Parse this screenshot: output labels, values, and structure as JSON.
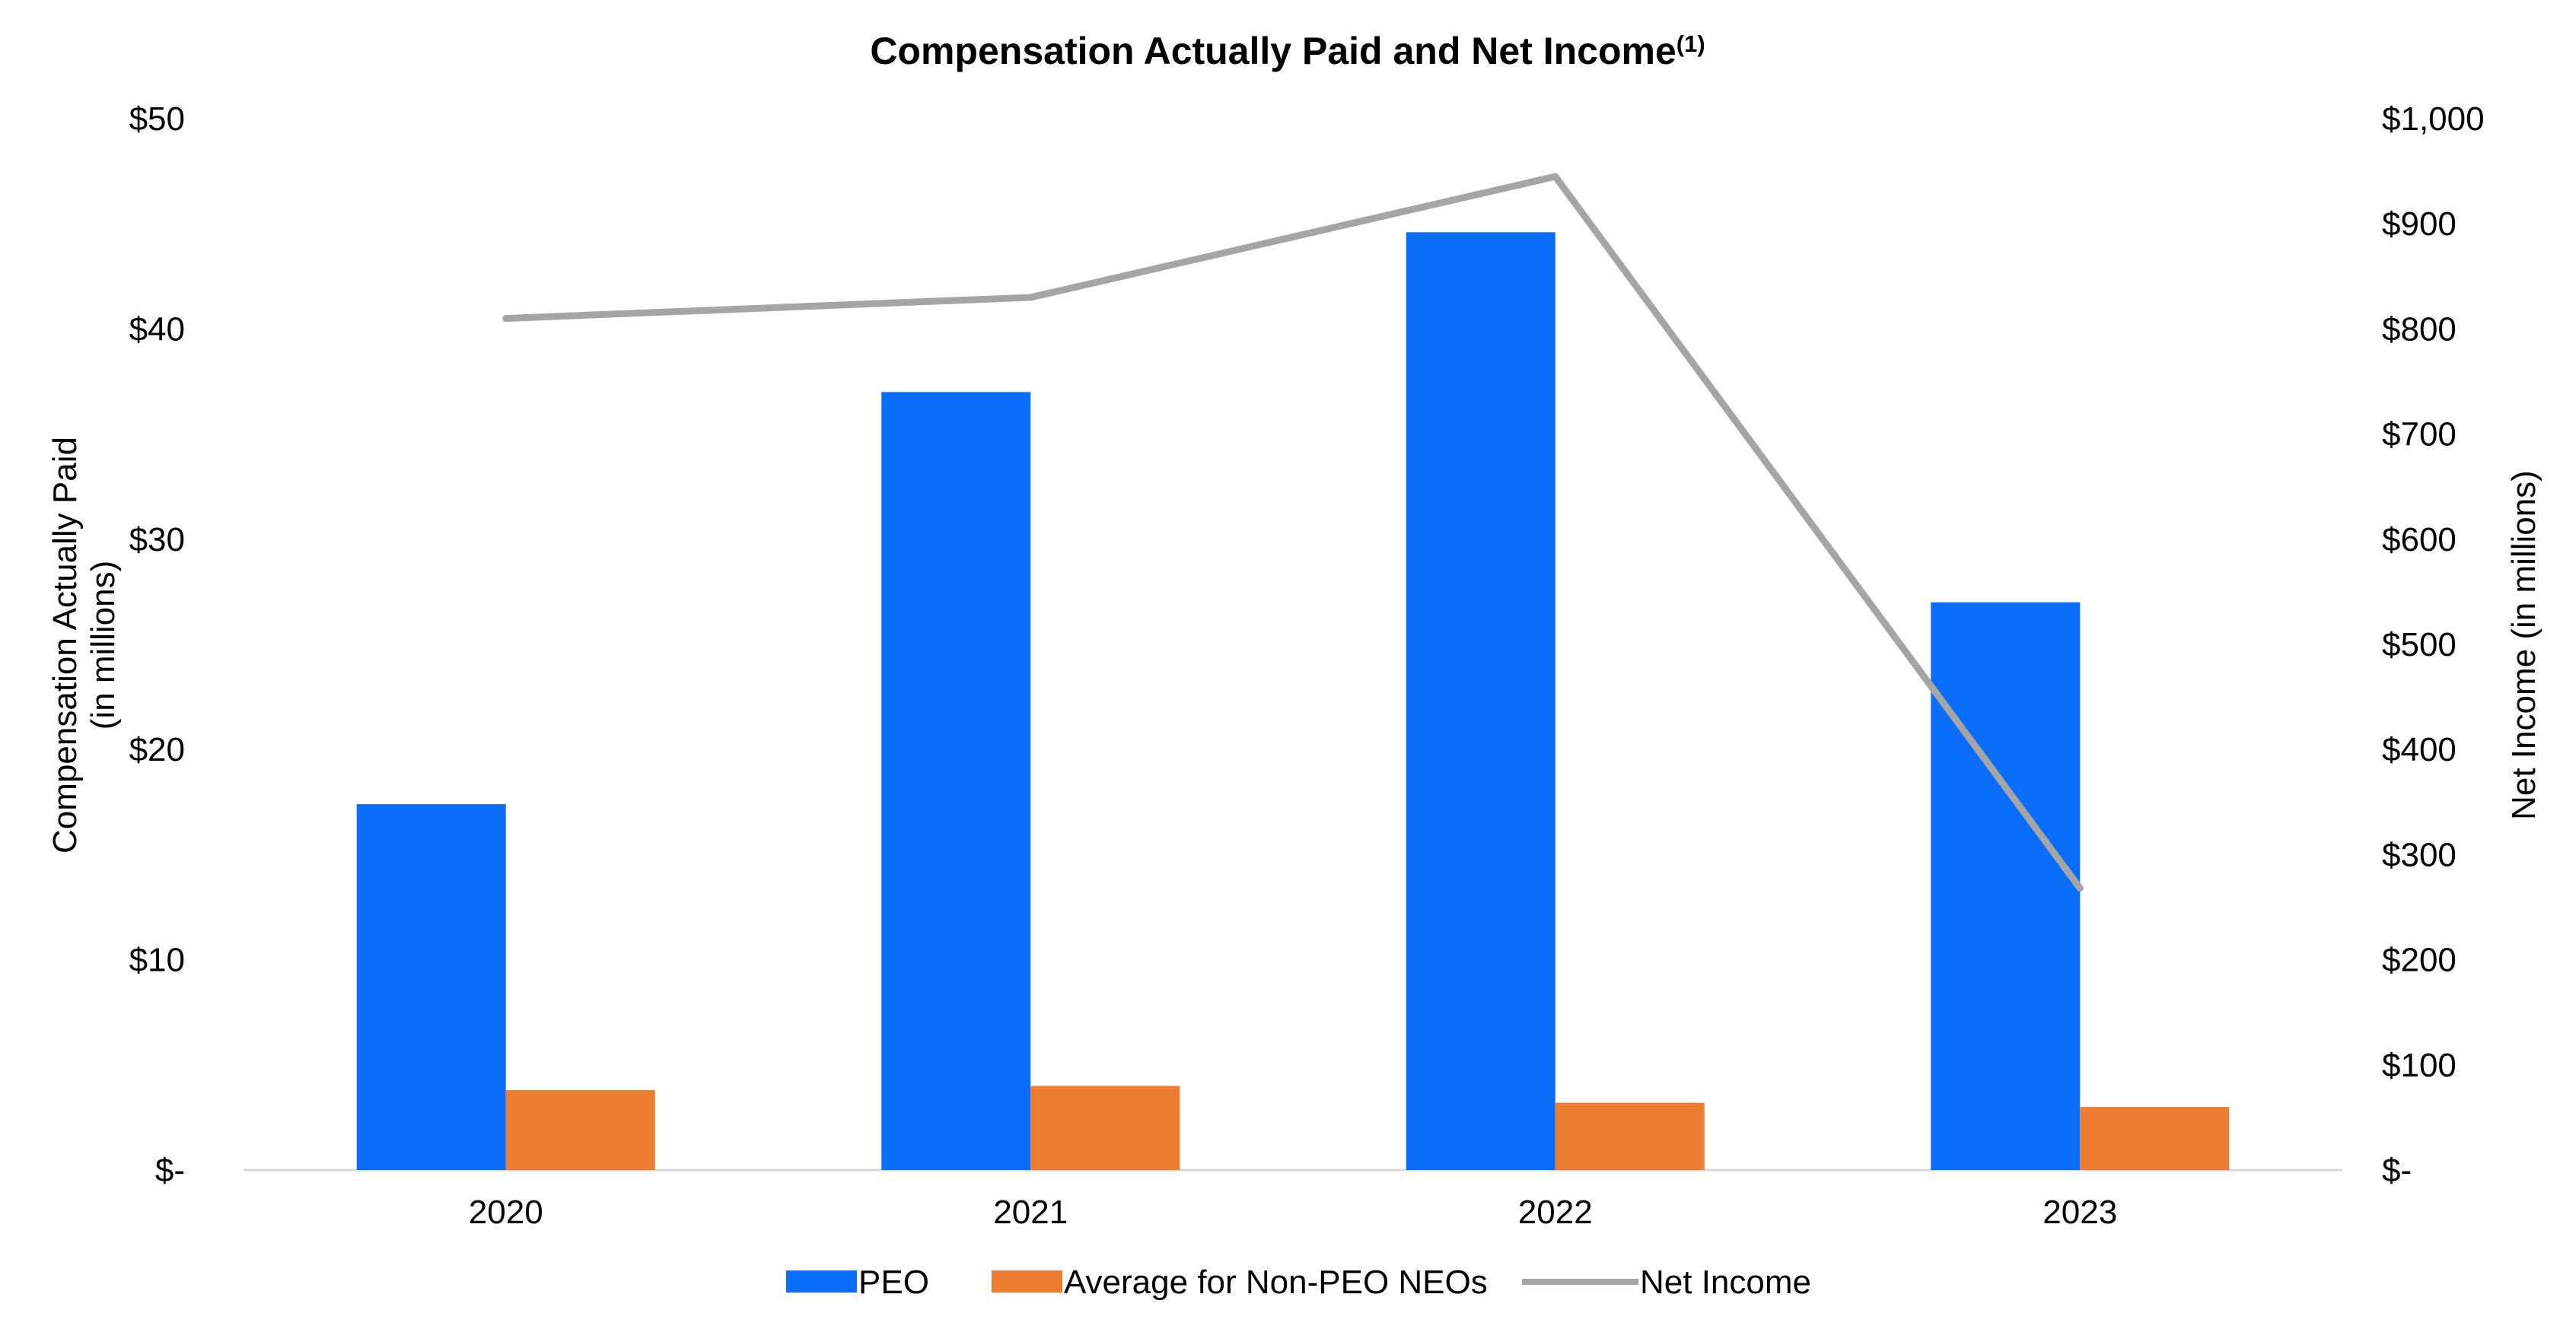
{
  "chart_data": {
    "type": "bar",
    "title": "Compensation Actually Paid and Net Income",
    "title_superscript": "(1)",
    "categories": [
      "2020",
      "2021",
      "2022",
      "2023"
    ],
    "series": [
      {
        "name": "PEO",
        "kind": "bar",
        "axis": "left",
        "color": "#0A6EFA",
        "values": [
          17.4,
          37.0,
          44.6,
          27.0
        ]
      },
      {
        "name": "Average for Non-PEO NEOs",
        "kind": "bar",
        "axis": "left",
        "color": "#ED7D31",
        "values": [
          3.8,
          4.0,
          3.2,
          3.0
        ]
      },
      {
        "name": "Net Income",
        "kind": "line",
        "axis": "right",
        "color": "#A5A5A5",
        "values": [
          810,
          830,
          945,
          268
        ]
      }
    ],
    "y_left": {
      "label_line1": "Compensation Actually Paid",
      "label_line2": "(in millions)",
      "range": [
        0,
        50
      ],
      "ticks": [
        0,
        10,
        20,
        30,
        40,
        50
      ],
      "tick_labels": [
        "$-",
        "$10",
        "$20",
        "$30",
        "$40",
        "$50"
      ]
    },
    "y_right": {
      "label": "Net Income (in millions)",
      "range": [
        0,
        1000
      ],
      "ticks": [
        0,
        100,
        200,
        300,
        400,
        500,
        600,
        700,
        800,
        900,
        1000
      ],
      "tick_labels": [
        "$-",
        "$100",
        "$200",
        "$300",
        "$400",
        "$500",
        "$600",
        "$700",
        "$800",
        "$900",
        "$1,000"
      ]
    },
    "grid": false,
    "legend_position": "bottom"
  }
}
